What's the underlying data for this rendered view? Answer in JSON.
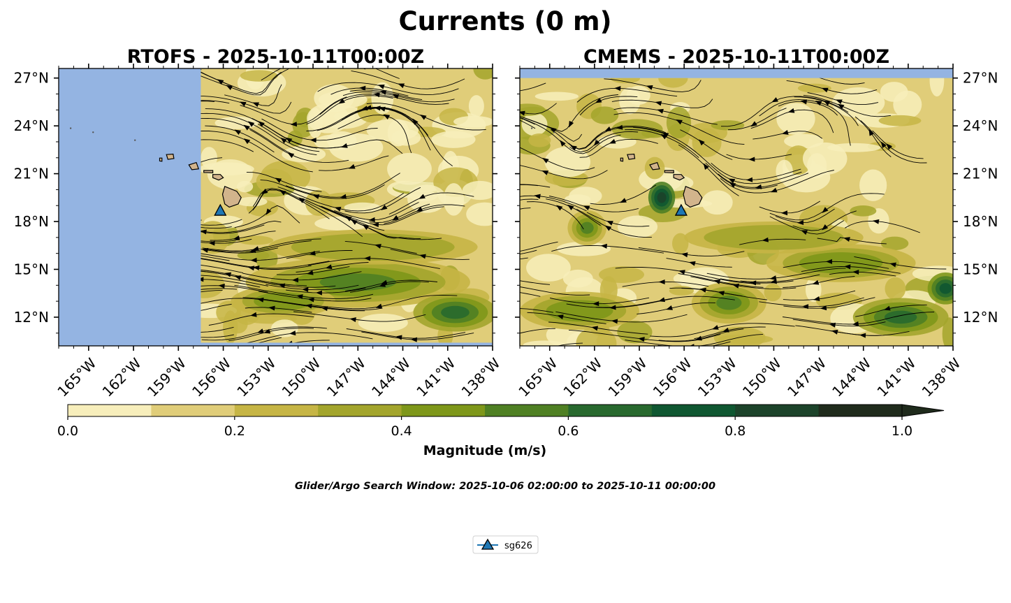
{
  "title": "Currents (0 m)",
  "note": "Glider/Argo Search Window: 2025-10-06 02:00:00 to 2025-10-11 00:00:00",
  "colorbar": {
    "label": "Magnitude (m/s)",
    "levels": [
      0.0,
      0.1,
      0.2,
      0.3,
      0.4,
      0.5,
      0.6,
      0.7,
      0.8,
      0.9,
      1.0
    ],
    "tick_values": [
      0.0,
      0.2,
      0.4,
      0.6,
      0.8,
      1.0
    ],
    "tick_labels": [
      "0.0",
      "0.2",
      "0.4",
      "0.6",
      "0.8",
      "1.0"
    ],
    "colors": [
      "#f7eebb",
      "#e0cd79",
      "#c6b545",
      "#a3a52c",
      "#7e971a",
      "#4f8023",
      "#28692e",
      "#0f5731",
      "#1c432a",
      "#1f2b1c"
    ],
    "extend": "max"
  },
  "legend": {
    "entries": [
      {
        "label": "sg626",
        "marker": "triangle",
        "color": "#1f77b4"
      }
    ]
  },
  "colors": {
    "ocean_nodata": "#94b4e2",
    "land": "#d2b48c",
    "glider": "#1f77b4"
  },
  "chart_data": [
    {
      "type": "heatmap",
      "subtype": "streamplot",
      "title": "RTOFS - 2025-10-11T00:00Z",
      "model": "RTOFS",
      "valid_time": "2025-10-11T00:00Z",
      "xlim": [
        -167,
        -138
      ],
      "ylim": [
        10.2,
        27.6
      ],
      "x_ticks": [
        -165,
        -162,
        -159,
        -156,
        -153,
        -150,
        -147,
        -144,
        -141,
        -138
      ],
      "x_tick_labels": [
        "165°W",
        "162°W",
        "159°W",
        "156°W",
        "153°W",
        "150°W",
        "147°W",
        "144°W",
        "141°W",
        "138°W"
      ],
      "y_ticks": [
        12,
        15,
        18,
        21,
        24,
        27
      ],
      "y_tick_labels": [
        "12°N",
        "15°N",
        "18°N",
        "21°N",
        "24°N",
        "27°N"
      ],
      "y_axis_side": "left",
      "data_extent": {
        "lon": [
          -157.5,
          -138
        ],
        "lat": [
          10.4,
          27.6
        ]
      },
      "glider": {
        "name": "sg626",
        "lon": -156.2,
        "lat": 18.7
      },
      "strong_current_regions": [
        {
          "lon": -147,
          "lat": 14.2,
          "rx": 7.5,
          "ry": 1.6,
          "magnitude": 0.5
        },
        {
          "lon": -140.5,
          "lat": 12.3,
          "rx": 2.8,
          "ry": 1.2,
          "magnitude": 0.6
        },
        {
          "lon": -152,
          "lat": 13.0,
          "rx": 3.5,
          "ry": 1.0,
          "magnitude": 0.45
        },
        {
          "lon": -146,
          "lat": 16.4,
          "rx": 7.0,
          "ry": 1.1,
          "magnitude": 0.35
        }
      ]
    },
    {
      "type": "heatmap",
      "subtype": "streamplot",
      "title": "CMEMS - 2025-10-11T00:00Z",
      "model": "CMEMS",
      "valid_time": "2025-10-11T00:00Z",
      "xlim": [
        -167,
        -138
      ],
      "ylim": [
        10.2,
        27.6
      ],
      "x_ticks": [
        -165,
        -162,
        -159,
        -156,
        -153,
        -150,
        -147,
        -144,
        -141,
        -138
      ],
      "x_tick_labels": [
        "165°W",
        "162°W",
        "159°W",
        "156°W",
        "153°W",
        "150°W",
        "147°W",
        "144°W",
        "141°W",
        "138°W"
      ],
      "y_ticks": [
        12,
        15,
        18,
        21,
        24,
        27
      ],
      "y_tick_labels": [
        "12°N",
        "15°N",
        "18°N",
        "21°N",
        "24°N",
        "27°N"
      ],
      "y_axis_side": "right",
      "data_extent": {
        "lon": [
          -167,
          -138
        ],
        "lat": [
          10.2,
          27.0
        ]
      },
      "glider": {
        "name": "sg626",
        "lon": -156.2,
        "lat": 18.7
      },
      "strong_current_regions": [
        {
          "lon": -157.5,
          "lat": 19.5,
          "rx": 0.9,
          "ry": 1.0,
          "magnitude": 0.8
        },
        {
          "lon": -162.5,
          "lat": 17.6,
          "rx": 1.3,
          "ry": 1.1,
          "magnitude": 0.55
        },
        {
          "lon": -141.5,
          "lat": 12.0,
          "rx": 3.2,
          "ry": 1.2,
          "magnitude": 0.6
        },
        {
          "lon": -153,
          "lat": 12.9,
          "rx": 2.5,
          "ry": 1.3,
          "magnitude": 0.5
        },
        {
          "lon": -145.5,
          "lat": 15.4,
          "rx": 5.0,
          "ry": 1.2,
          "magnitude": 0.4
        },
        {
          "lon": -163,
          "lat": 12.4,
          "rx": 4.0,
          "ry": 1.2,
          "magnitude": 0.4
        },
        {
          "lon": -138.5,
          "lat": 13.8,
          "rx": 1.2,
          "ry": 1.0,
          "magnitude": 0.7
        },
        {
          "lon": -150,
          "lat": 17.0,
          "rx": 6.0,
          "ry": 1.0,
          "magnitude": 0.3
        }
      ]
    }
  ]
}
